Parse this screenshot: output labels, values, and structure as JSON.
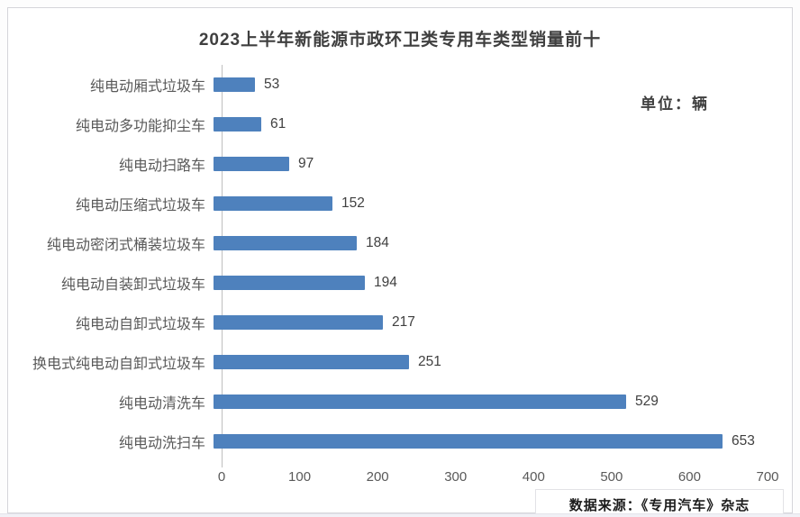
{
  "title": "2023上半年新能源市政环卫类专用车类型销量前十",
  "unit_label": "单位：辆",
  "source_label": "数据来源：《专用汽车》杂志",
  "chart_data": {
    "type": "bar",
    "orientation": "horizontal",
    "title": "2023上半年新能源市政环卫类专用车类型销量前十",
    "unit": "辆",
    "categories": [
      "纯电动厢式垃圾车",
      "纯电动多功能抑尘车",
      "纯电动扫路车",
      "纯电动压缩式垃圾车",
      "纯电动密闭式桶装垃圾车",
      "纯电动自装卸式垃圾车",
      "纯电动自卸式垃圾车",
      "换电式纯电动自卸式垃圾车",
      "纯电动清洗车",
      "纯电动洗扫车"
    ],
    "values": [
      53,
      61,
      97,
      152,
      184,
      194,
      217,
      251,
      529,
      653
    ],
    "xlabel": "",
    "ylabel": "",
    "xlim": [
      0,
      700
    ],
    "xticks": [
      0,
      100,
      200,
      300,
      400,
      500,
      600,
      700
    ],
    "grid": false,
    "legend": false,
    "data_labels": true,
    "bar_color": "#4e81bd",
    "axis_color": "#bfbfbf"
  }
}
